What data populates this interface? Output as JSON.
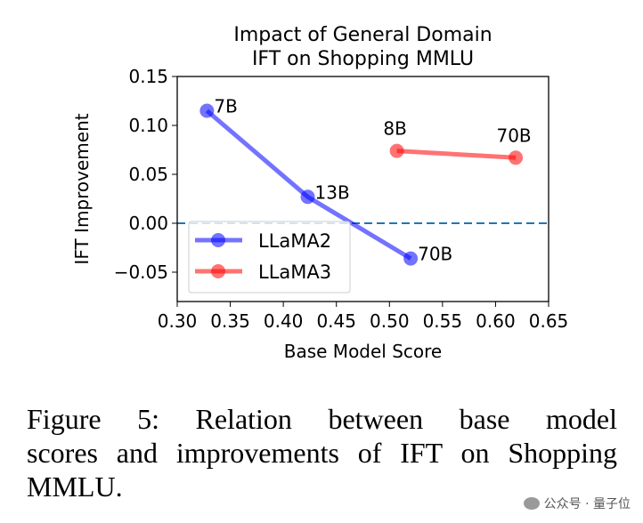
{
  "chart_data": {
    "type": "line",
    "title": "Impact of General Domain\nIFT on Shopping MMLU",
    "title_lines": [
      "Impact of General Domain",
      "IFT on Shopping MMLU"
    ],
    "xlabel": "Base Model Score",
    "ylabel": "IFT Improvement",
    "xlim": [
      0.3,
      0.65
    ],
    "ylim": [
      -0.08,
      0.15
    ],
    "xticks": [
      "0.30",
      "0.35",
      "0.40",
      "0.45",
      "0.50",
      "0.55",
      "0.60",
      "0.65"
    ],
    "yticks": [
      "−0.05",
      "0.00",
      "0.05",
      "0.10",
      "0.15"
    ],
    "grid": false,
    "legend_position": "lower-left",
    "reference_line": {
      "y": 0.0,
      "style": "dashed",
      "color": "#1f77b4"
    },
    "series": [
      {
        "name": "LLaMA2",
        "color": "#0000ff",
        "x": [
          0.328,
          0.423,
          0.52
        ],
        "y": [
          0.115,
          0.027,
          -0.036
        ],
        "labels": [
          "7B",
          "13B",
          "70B"
        ]
      },
      {
        "name": "LLaMA3",
        "color": "#ff0000",
        "x": [
          0.507,
          0.619
        ],
        "y": [
          0.074,
          0.067
        ],
        "labels": [
          "8B",
          "70B"
        ]
      }
    ]
  },
  "caption": {
    "line1": "Figure 5:  Relation between base model",
    "rest": "scores and improvements of IFT on Shopping MMLU."
  },
  "watermark": {
    "text": "公众号 · 量子位",
    "icon": "wechat-icon"
  }
}
